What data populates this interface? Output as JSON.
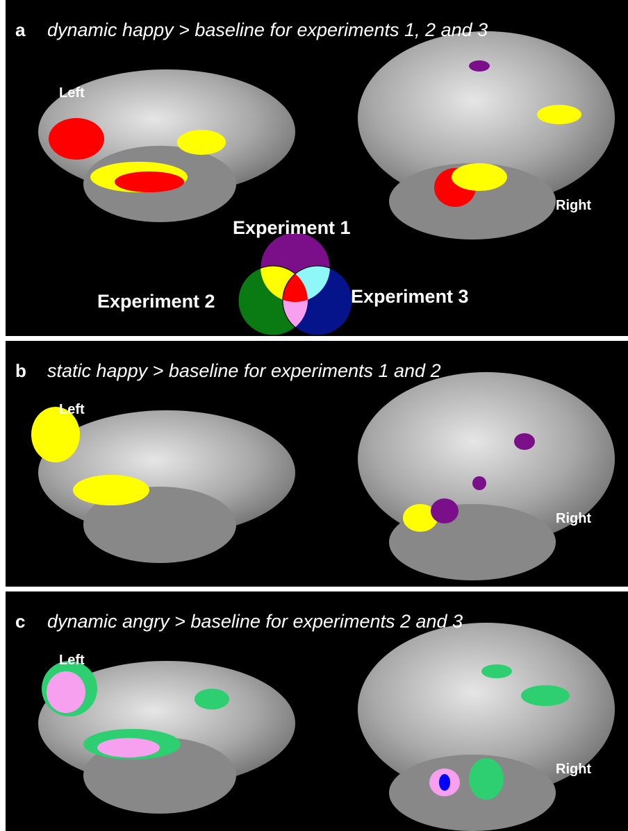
{
  "panels": [
    {
      "letter": "a",
      "title": "dynamic happy > baseline for experiments 1, 2 and 3",
      "left_label": "Left",
      "right_label": "Right"
    },
    {
      "letter": "b",
      "title": "static happy > baseline for experiments 1 and 2",
      "left_label": "Left",
      "right_label": "Right"
    },
    {
      "letter": "c",
      "title": "dynamic angry > baseline for experiments 2 and 3",
      "left_label": "Left",
      "right_label": "Right"
    }
  ],
  "legend": {
    "experiment_1": "Experiment 1",
    "experiment_2": "Experiment 2",
    "experiment_3": "Experiment 3"
  }
}
